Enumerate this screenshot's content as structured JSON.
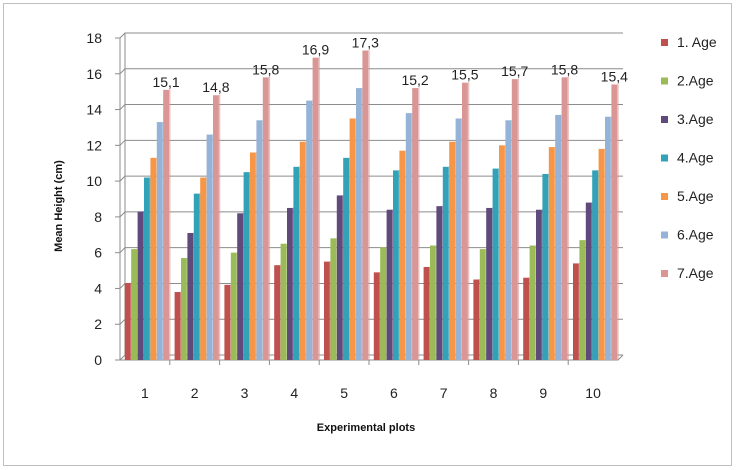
{
  "chart_data": {
    "type": "bar",
    "xlabel": "Experimental plots",
    "ylabel": "Mean Height (cm)",
    "ylim": [
      0,
      18
    ],
    "yticks": [
      0,
      2,
      4,
      6,
      8,
      10,
      12,
      14,
      16,
      18
    ],
    "grid": true,
    "legend_position": "right",
    "categories": [
      "1",
      "2",
      "3",
      "4",
      "5",
      "6",
      "7",
      "8",
      "9",
      "10"
    ],
    "series": [
      {
        "name": "1. Age",
        "color": "#c0504d",
        "values": [
          4.3,
          3.8,
          4.2,
          5.3,
          5.5,
          4.9,
          5.2,
          4.5,
          4.6,
          5.4
        ]
      },
      {
        "name": "2.Age",
        "color": "#9bbb59",
        "values": [
          6.2,
          5.7,
          6.0,
          6.5,
          6.8,
          6.3,
          6.4,
          6.2,
          6.4,
          6.7
        ]
      },
      {
        "name": "3.Age",
        "color": "#604a7b",
        "values": [
          8.3,
          7.1,
          8.2,
          8.5,
          9.2,
          8.4,
          8.6,
          8.5,
          8.4,
          8.8
        ]
      },
      {
        "name": "4.Age",
        "color": "#31a2b8",
        "values": [
          10.2,
          9.3,
          10.5,
          10.8,
          11.3,
          10.6,
          10.8,
          10.7,
          10.4,
          10.6
        ]
      },
      {
        "name": "5.Age",
        "color": "#f79646",
        "values": [
          11.3,
          10.2,
          11.6,
          12.2,
          13.5,
          11.7,
          12.2,
          12.0,
          11.9,
          11.8
        ]
      },
      {
        "name": "6.Age",
        "color": "#95b3d7",
        "values": [
          13.3,
          12.6,
          13.4,
          14.5,
          15.2,
          13.8,
          13.5,
          13.4,
          13.7,
          13.6
        ]
      },
      {
        "name": "7.Age",
        "color": "#d99694",
        "values": [
          15.1,
          14.8,
          15.8,
          16.9,
          17.3,
          15.2,
          15.5,
          15.7,
          15.8,
          15.4
        ]
      }
    ],
    "data_labels": {
      "series": "7.Age",
      "texts": [
        "15,1",
        "14,8",
        "15,8",
        "16,9",
        "17,3",
        "15,2",
        "15,5",
        "15,7",
        "15,8",
        "15,4"
      ]
    }
  }
}
